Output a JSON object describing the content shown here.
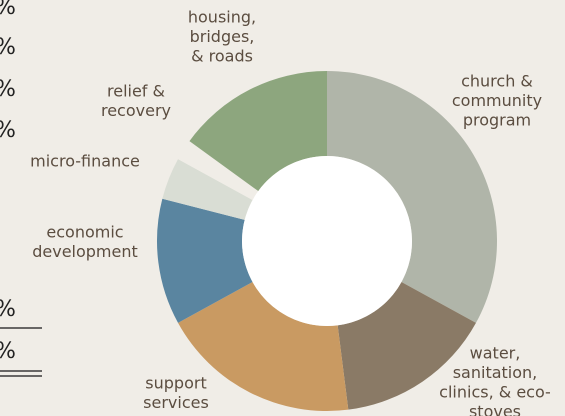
{
  "chart_data": {
    "type": "donut",
    "categories": [
      [
        "church &",
        "community",
        "program"
      ],
      [
        "water,",
        "sanitation,",
        "clinics, & eco-",
        "stoves"
      ],
      [
        "support",
        "services"
      ],
      [
        "economic",
        "development"
      ],
      [
        "micro-finance"
      ],
      [
        "relief &",
        "recovery"
      ],
      [
        "housing,",
        "bridges,",
        "& roads"
      ]
    ],
    "values": [
      33,
      15,
      19,
      12,
      4,
      2,
      15
    ],
    "colors": [
      "#b0b5a9",
      "#8a7a66",
      "#c99a62",
      "#5a85a0",
      "#d9ddd4",
      "#f0ede7",
      "#8da67e"
    ],
    "left_fragments": [
      "%",
      "%",
      "%",
      "%",
      "%",
      "%"
    ]
  }
}
